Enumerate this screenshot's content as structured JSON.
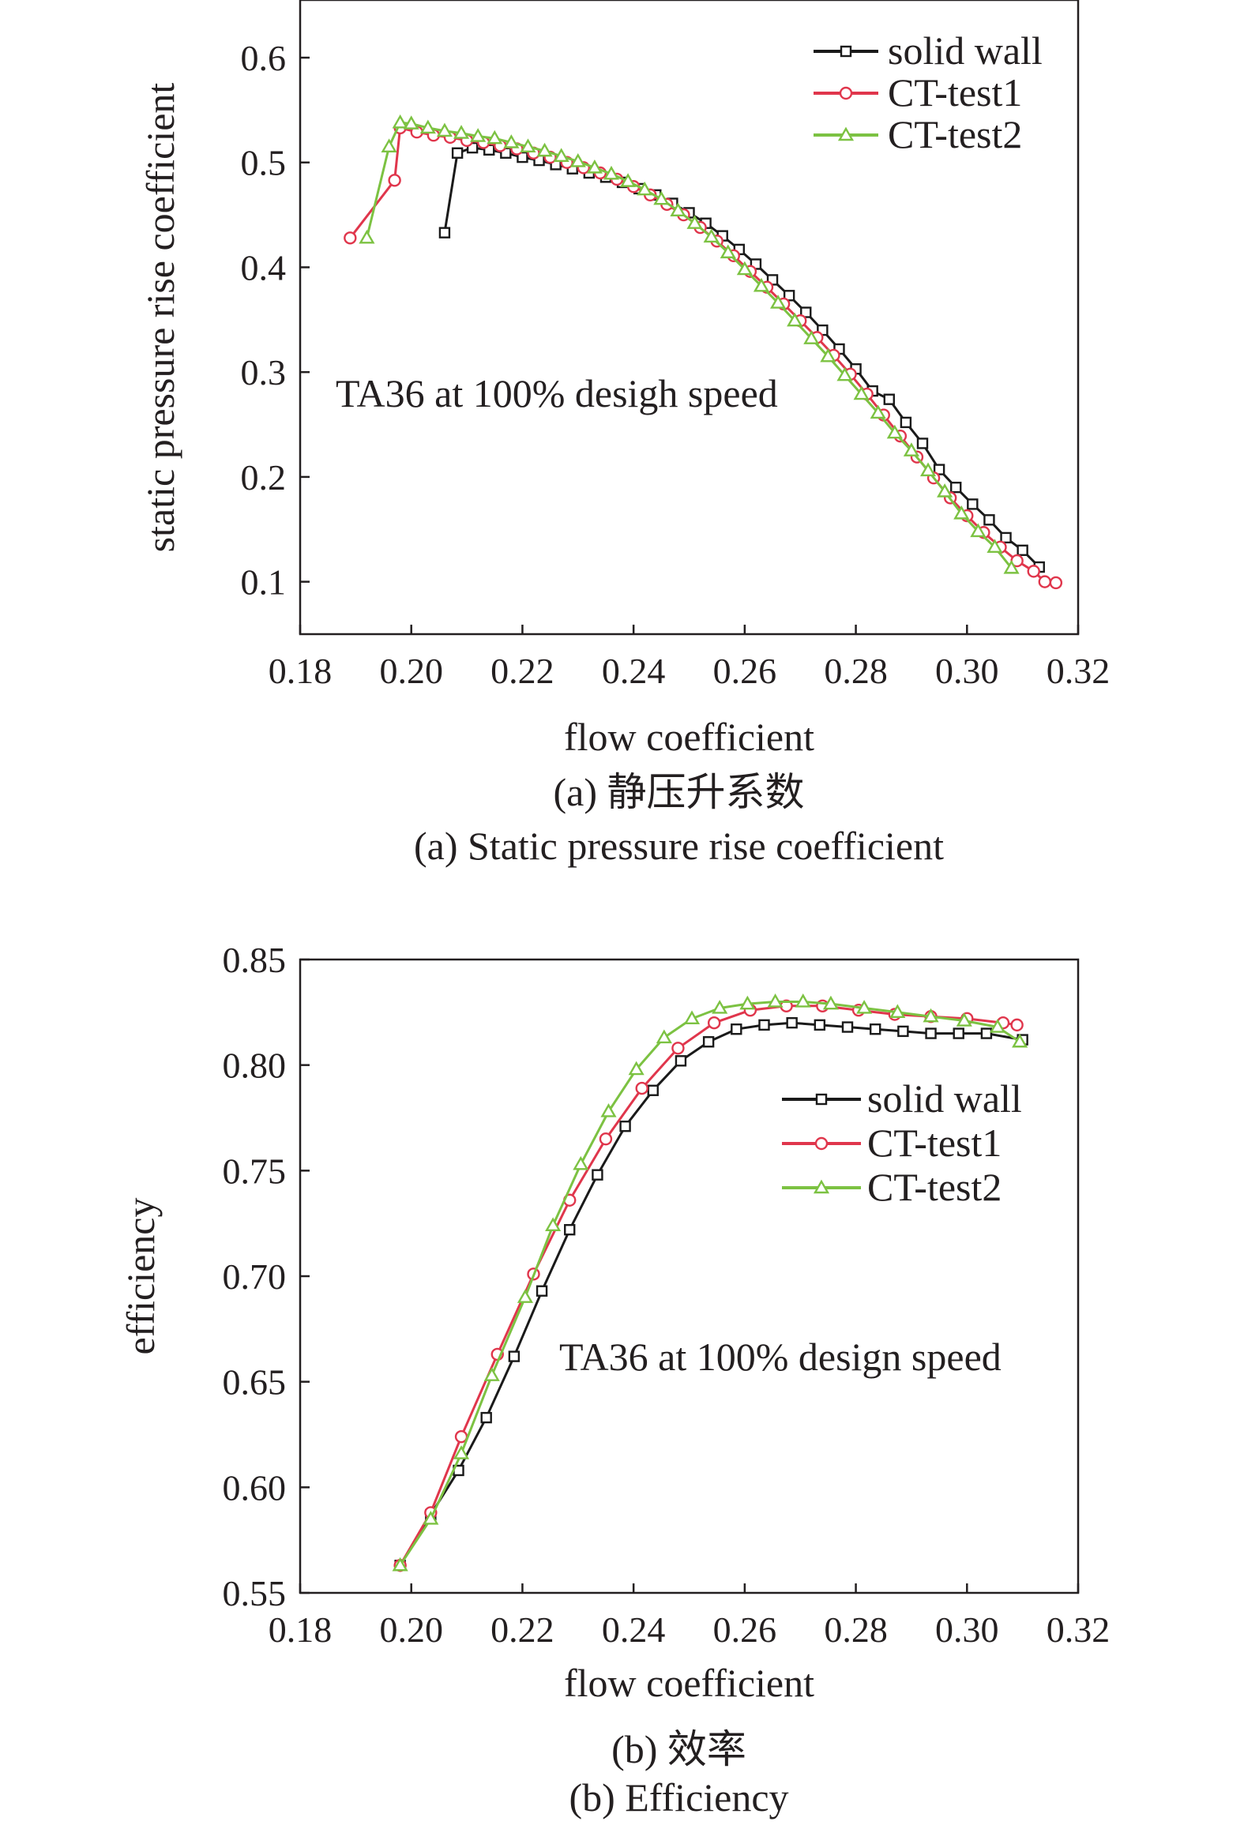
{
  "colors": {
    "solid wall": "#1a1a1a",
    "CT-test1": "#e0364c",
    "CT-test2": "#7cc242"
  },
  "chart_data": [
    {
      "type": "line",
      "xlabel": "flow coefficient",
      "ylabel": "static pressure rise coefficient",
      "xlim": [
        0.18,
        0.32
      ],
      "ylim": [
        0.05,
        0.655
      ],
      "xticks": [
        "0.18",
        "0.20",
        "0.22",
        "0.24",
        "0.26",
        "0.28",
        "0.30",
        "0.32"
      ],
      "yticks": [
        "0.1",
        "0.2",
        "0.3",
        "0.4",
        "0.5",
        "0.6"
      ],
      "annotation": "TA36 at 100% desigh speed",
      "caption_cn": "(a) 静压升系数",
      "caption_en": "(a) Static pressure rise coefficient",
      "legend_position": "top-right",
      "series": [
        {
          "name": "solid wall",
          "marker": "square",
          "x": [
            0.206,
            0.2083,
            0.211,
            0.214,
            0.217,
            0.22,
            0.223,
            0.226,
            0.229,
            0.232,
            0.235,
            0.238,
            0.241,
            0.244,
            0.247,
            0.25,
            0.253,
            0.256,
            0.259,
            0.262,
            0.265,
            0.268,
            0.271,
            0.274,
            0.277,
            0.28,
            0.283,
            0.286,
            0.289,
            0.292,
            0.295,
            0.298,
            0.301,
            0.304,
            0.307,
            0.31,
            0.313
          ],
          "y": [
            0.433,
            0.509,
            0.514,
            0.512,
            0.509,
            0.505,
            0.502,
            0.498,
            0.494,
            0.49,
            0.486,
            0.481,
            0.475,
            0.469,
            0.461,
            0.452,
            0.442,
            0.43,
            0.417,
            0.403,
            0.388,
            0.373,
            0.357,
            0.34,
            0.322,
            0.303,
            0.282,
            0.274,
            0.252,
            0.232,
            0.207,
            0.19,
            0.174,
            0.159,
            0.142,
            0.13,
            0.114
          ]
        },
        {
          "name": "CT-test1",
          "marker": "circle",
          "x": [
            0.189,
            0.197,
            0.198,
            0.201,
            0.204,
            0.207,
            0.21,
            0.213,
            0.216,
            0.219,
            0.222,
            0.225,
            0.228,
            0.231,
            0.234,
            0.237,
            0.24,
            0.243,
            0.246,
            0.249,
            0.252,
            0.255,
            0.258,
            0.261,
            0.264,
            0.267,
            0.27,
            0.273,
            0.276,
            0.279,
            0.282,
            0.285,
            0.288,
            0.291,
            0.294,
            0.297,
            0.3,
            0.303,
            0.306,
            0.309,
            0.312,
            0.314,
            0.316
          ],
          "y": [
            0.428,
            0.483,
            0.533,
            0.529,
            0.526,
            0.524,
            0.521,
            0.519,
            0.516,
            0.513,
            0.509,
            0.505,
            0.5,
            0.495,
            0.49,
            0.484,
            0.477,
            0.469,
            0.46,
            0.45,
            0.438,
            0.425,
            0.411,
            0.396,
            0.381,
            0.365,
            0.349,
            0.333,
            0.316,
            0.298,
            0.279,
            0.259,
            0.239,
            0.219,
            0.199,
            0.18,
            0.163,
            0.147,
            0.133,
            0.12,
            0.11,
            0.1,
            0.099
          ]
        },
        {
          "name": "CT-test2",
          "marker": "triangle",
          "x": [
            0.192,
            0.196,
            0.198,
            0.2,
            0.203,
            0.206,
            0.209,
            0.212,
            0.215,
            0.218,
            0.221,
            0.224,
            0.227,
            0.23,
            0.233,
            0.236,
            0.239,
            0.242,
            0.245,
            0.248,
            0.251,
            0.254,
            0.257,
            0.26,
            0.263,
            0.266,
            0.269,
            0.272,
            0.275,
            0.278,
            0.281,
            0.284,
            0.287,
            0.29,
            0.293,
            0.296,
            0.299,
            0.302,
            0.305,
            0.308
          ],
          "y": [
            0.428,
            0.515,
            0.538,
            0.537,
            0.533,
            0.53,
            0.528,
            0.525,
            0.523,
            0.519,
            0.515,
            0.511,
            0.506,
            0.501,
            0.495,
            0.489,
            0.482,
            0.474,
            0.465,
            0.454,
            0.442,
            0.429,
            0.414,
            0.398,
            0.382,
            0.366,
            0.349,
            0.332,
            0.315,
            0.297,
            0.279,
            0.261,
            0.242,
            0.225,
            0.206,
            0.186,
            0.165,
            0.148,
            0.133,
            0.113
          ]
        }
      ]
    },
    {
      "type": "line",
      "xlabel": "flow coefficient",
      "ylabel": "efficiency",
      "xlim": [
        0.18,
        0.32
      ],
      "ylim": [
        0.55,
        0.85
      ],
      "xticks": [
        "0.18",
        "0.20",
        "0.22",
        "0.24",
        "0.26",
        "0.28",
        "0.30",
        "0.32"
      ],
      "yticks": [
        "0.55",
        "0.60",
        "0.65",
        "0.70",
        "0.75",
        "0.80",
        "0.85"
      ],
      "annotation": "TA36 at 100% design speed",
      "caption_cn": "(b) 效率",
      "caption_en": "(b) Efficiency",
      "legend_position": "upper-right",
      "series": [
        {
          "name": "solid wall",
          "marker": "square",
          "x": [
            0.198,
            0.2035,
            0.2085,
            0.2135,
            0.2185,
            0.2235,
            0.2285,
            0.2335,
            0.2385,
            0.2435,
            0.2485,
            0.2535,
            0.2585,
            0.2635,
            0.2685,
            0.2735,
            0.2785,
            0.2835,
            0.2885,
            0.2935,
            0.2985,
            0.3035,
            0.31
          ],
          "y": [
            0.563,
            0.587,
            0.608,
            0.633,
            0.662,
            0.693,
            0.722,
            0.748,
            0.771,
            0.788,
            0.802,
            0.811,
            0.817,
            0.819,
            0.82,
            0.819,
            0.818,
            0.817,
            0.816,
            0.815,
            0.815,
            0.815,
            0.812
          ]
        },
        {
          "name": "CT-test1",
          "marker": "circle",
          "x": [
            0.198,
            0.2035,
            0.209,
            0.2155,
            0.222,
            0.2285,
            0.235,
            0.2415,
            0.248,
            0.2545,
            0.261,
            0.2675,
            0.274,
            0.2805,
            0.287,
            0.2935,
            0.3,
            0.3065,
            0.309
          ],
          "y": [
            0.563,
            0.588,
            0.624,
            0.663,
            0.701,
            0.736,
            0.765,
            0.789,
            0.808,
            0.82,
            0.826,
            0.828,
            0.828,
            0.826,
            0.824,
            0.823,
            0.822,
            0.82,
            0.819
          ]
        },
        {
          "name": "CT-test2",
          "marker": "triangle",
          "x": [
            0.198,
            0.2035,
            0.209,
            0.2145,
            0.2205,
            0.2255,
            0.2305,
            0.2355,
            0.2405,
            0.2455,
            0.2505,
            0.2555,
            0.2605,
            0.2655,
            0.2705,
            0.2755,
            0.2815,
            0.2875,
            0.2935,
            0.2995,
            0.3055,
            0.3095
          ],
          "y": [
            0.563,
            0.585,
            0.616,
            0.653,
            0.69,
            0.724,
            0.753,
            0.778,
            0.798,
            0.813,
            0.822,
            0.827,
            0.829,
            0.83,
            0.83,
            0.829,
            0.827,
            0.825,
            0.823,
            0.821,
            0.818,
            0.811
          ]
        }
      ]
    }
  ]
}
